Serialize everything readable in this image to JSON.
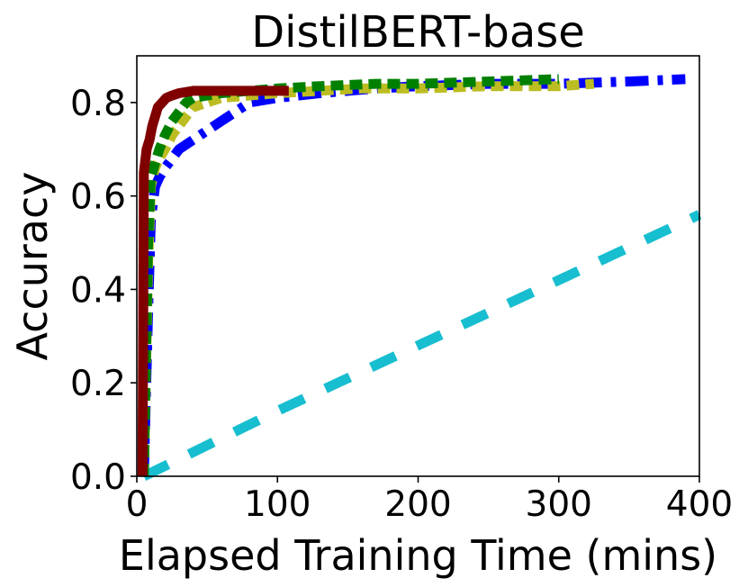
{
  "chart_data": {
    "type": "line",
    "title": "DistilBERT-base",
    "xlabel": "Elapsed Training Time (mins)",
    "ylabel": "Accuracy",
    "xlim": [
      0,
      400
    ],
    "ylim": [
      0,
      0.9
    ],
    "xticks": [
      0,
      100,
      200,
      300,
      400
    ],
    "yticks": [
      0.0,
      0.2,
      0.4,
      0.6,
      0.8
    ],
    "xtick_labels": [
      "0",
      "100",
      "200",
      "300",
      "400"
    ],
    "ytick_labels": [
      "0.0",
      "0.2",
      "0.4",
      "0.6",
      "0.8"
    ],
    "grid": false,
    "legend": false,
    "series": [
      {
        "name": "cyan-dashed",
        "color": "#17becf",
        "style": "dashed",
        "x": [
          5,
          100,
          200,
          300,
          400
        ],
        "y": [
          0.0,
          0.14,
          0.28,
          0.42,
          0.56
        ]
      },
      {
        "name": "blue-dashdot",
        "color": "#0000ff",
        "style": "dashdot",
        "x": [
          5,
          8,
          10,
          13,
          16,
          20,
          25,
          30,
          40,
          50,
          60,
          70,
          80,
          100,
          130,
          170,
          200,
          250,
          300,
          350,
          390
        ],
        "y": [
          0.0,
          0.35,
          0.55,
          0.62,
          0.64,
          0.66,
          0.68,
          0.7,
          0.72,
          0.74,
          0.76,
          0.78,
          0.8,
          0.81,
          0.82,
          0.83,
          0.835,
          0.84,
          0.84,
          0.845,
          0.85
        ]
      },
      {
        "name": "olive-dotted",
        "color": "#bcbd22",
        "style": "dotted",
        "x": [
          5,
          8,
          10,
          13,
          16,
          20,
          25,
          30,
          35,
          40,
          50,
          60,
          80,
          100,
          130,
          160,
          200,
          250,
          300,
          325
        ],
        "y": [
          0.0,
          0.45,
          0.62,
          0.66,
          0.68,
          0.7,
          0.73,
          0.75,
          0.77,
          0.79,
          0.8,
          0.81,
          0.815,
          0.82,
          0.825,
          0.83,
          0.83,
          0.835,
          0.835,
          0.84
        ]
      },
      {
        "name": "green-dotted",
        "color": "#008000",
        "style": "dotted",
        "x": [
          5,
          8,
          10,
          13,
          16,
          20,
          25,
          30,
          35,
          40,
          50,
          60,
          80,
          100,
          130,
          170,
          200,
          250,
          300
        ],
        "y": [
          0.0,
          0.5,
          0.64,
          0.67,
          0.7,
          0.73,
          0.76,
          0.78,
          0.8,
          0.81,
          0.815,
          0.82,
          0.825,
          0.83,
          0.835,
          0.84,
          0.84,
          0.845,
          0.85
        ]
      },
      {
        "name": "darkred-solid",
        "color": "#800000",
        "style": "solid",
        "x": [
          4,
          5,
          7,
          9,
          11,
          13,
          15,
          18,
          21,
          25,
          30,
          40,
          60,
          80,
          100,
          108
        ],
        "y": [
          0.0,
          0.65,
          0.7,
          0.72,
          0.75,
          0.77,
          0.79,
          0.8,
          0.81,
          0.815,
          0.82,
          0.825,
          0.825,
          0.825,
          0.825,
          0.825
        ]
      }
    ]
  }
}
